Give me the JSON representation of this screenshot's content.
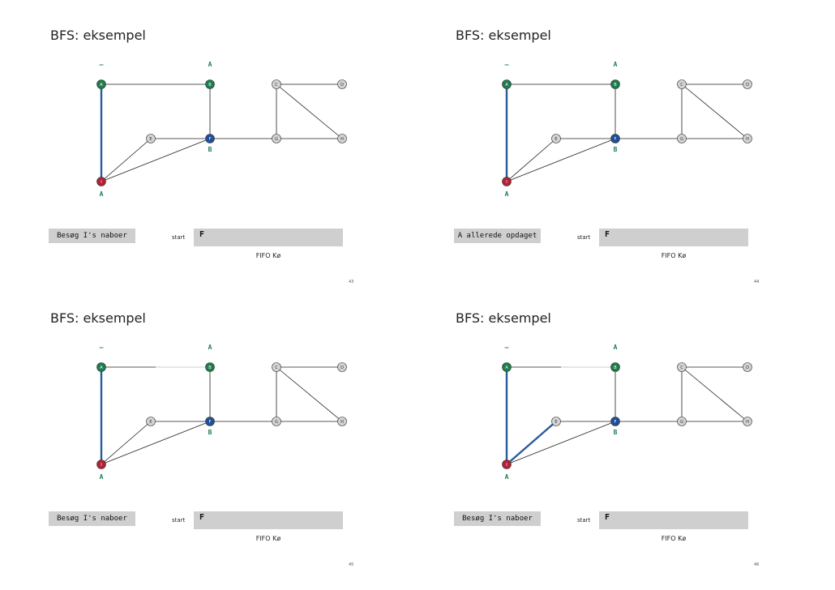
{
  "colors": {
    "visited_green": "#1c7d4d",
    "current_blue": "#1f4f96",
    "active_red": "#b22234",
    "unvisited_gray": "#d3d3d3",
    "tree_edge_blue": "#2a5a9a",
    "panel_gray": "#cfcfcf"
  },
  "slides": [
    {
      "title": "BFS: eksempel",
      "status": "Besøg I's naboer",
      "start_label": "start",
      "queue": [
        "F"
      ],
      "queue_label": "FIFO Kø",
      "page_number": "43",
      "dist_labels": {
        "A": "–",
        "B": "A",
        "F": "B",
        "I": "A"
      },
      "node_states": {
        "A": "green",
        "B": "green",
        "C": "gray",
        "D": "gray",
        "E": "gray",
        "F": "blue",
        "G": "gray",
        "H": "gray",
        "I": "red"
      },
      "tree_edges": [
        [
          "A",
          "I"
        ]
      ],
      "faded_edges": []
    },
    {
      "title": "BFS: eksempel",
      "status": "A allerede opdaget",
      "start_label": "start",
      "queue": [
        "F"
      ],
      "queue_label": "FIFO Kø",
      "page_number": "44",
      "dist_labels": {
        "A": "–",
        "B": "A",
        "F": "B",
        "I": "A"
      },
      "node_states": {
        "A": "green",
        "B": "green",
        "C": "gray",
        "D": "gray",
        "E": "gray",
        "F": "blue",
        "G": "gray",
        "H": "gray",
        "I": "red"
      },
      "tree_edges": [
        [
          "A",
          "I"
        ]
      ],
      "faded_edges": []
    },
    {
      "title": "BFS: eksempel",
      "status": "Besøg I's naboer",
      "start_label": "start",
      "queue": [
        "F"
      ],
      "queue_label": "FIFO Kø",
      "page_number": "45",
      "dist_labels": {
        "A": "–",
        "B": "A",
        "F": "B",
        "I": "A"
      },
      "node_states": {
        "A": "green",
        "B": "green",
        "C": "gray",
        "D": "gray",
        "E": "gray",
        "F": "blue",
        "G": "gray",
        "H": "gray",
        "I": "red"
      },
      "tree_edges": [
        [
          "A",
          "I"
        ]
      ],
      "faded_edges": [
        [
          "A",
          "B"
        ]
      ]
    },
    {
      "title": "BFS: eksempel",
      "status": "Besøg I's naboer",
      "start_label": "start",
      "queue": [
        "F"
      ],
      "queue_label": "FIFO Kø",
      "page_number": "46",
      "dist_labels": {
        "A": "–",
        "B": "A",
        "F": "B",
        "I": "A"
      },
      "node_states": {
        "A": "green",
        "B": "green",
        "C": "gray",
        "D": "gray",
        "E": "gray",
        "F": "blue",
        "G": "gray",
        "H": "gray",
        "I": "red"
      },
      "tree_edges": [
        [
          "A",
          "I"
        ],
        [
          "I",
          "E"
        ]
      ],
      "faded_edges": [
        [
          "A",
          "B"
        ]
      ]
    }
  ],
  "graph": {
    "nodes": [
      "A",
      "B",
      "C",
      "D",
      "E",
      "F",
      "G",
      "H",
      "I"
    ],
    "edges": [
      [
        "A",
        "B"
      ],
      [
        "A",
        "I"
      ],
      [
        "B",
        "F"
      ],
      [
        "C",
        "D"
      ],
      [
        "C",
        "G"
      ],
      [
        "C",
        "H"
      ],
      [
        "E",
        "F"
      ],
      [
        "E",
        "I"
      ],
      [
        "F",
        "G"
      ],
      [
        "F",
        "I"
      ],
      [
        "G",
        "H"
      ]
    ]
  }
}
